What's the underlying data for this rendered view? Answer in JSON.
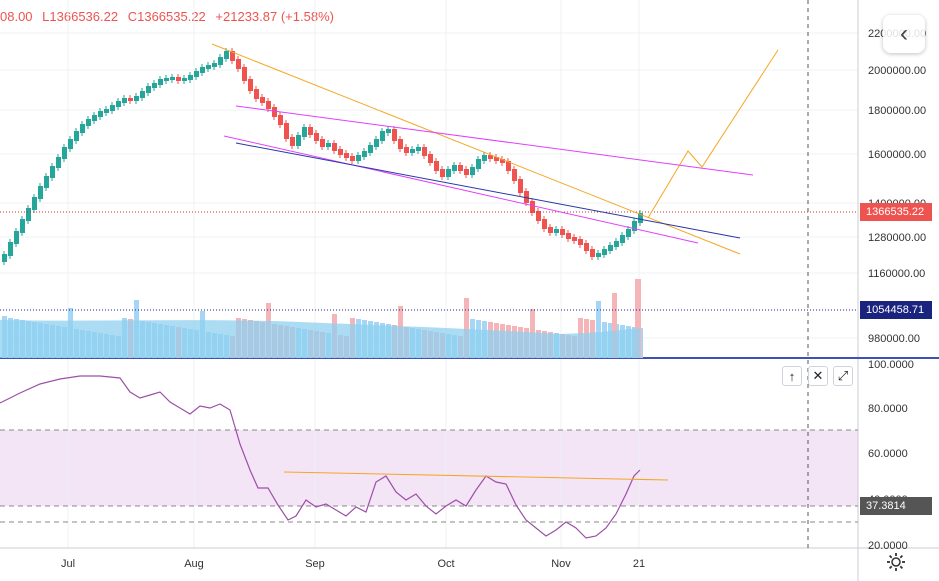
{
  "legend": {
    "open": "08.00",
    "low": "L1366536.22",
    "close": "C1366535.22",
    "change": "+21233.87 (+1.58%)"
  },
  "price_axis": [
    "2200000.00",
    "2000000.00",
    "1800000.00",
    "1600000.00",
    "1400000.00",
    "1280000.00",
    "1160000.00",
    "980000.00"
  ],
  "price_tag": "1366535.22",
  "volume_tag": "1054458.71",
  "indicator_axis": [
    "100.0000",
    "80.0000",
    "60.0000",
    "40.0000",
    "20.0000"
  ],
  "indicator_tag": "37.3814",
  "time_axis": [
    "Jul",
    "Aug",
    "Sep",
    "Oct",
    "Nov",
    "21"
  ],
  "pane_controls": {
    "up": "↑",
    "close": "✕",
    "maximize": "⤢"
  },
  "back_button": "‹",
  "colors": {
    "up": "#26a69a",
    "down": "#ef5350",
    "volume_up": "#a5d6f5",
    "volume_down": "#f5b5b8",
    "rsi": "#9c4fa8",
    "trend_orange": "#f5a623",
    "trend_pink": "#e040fb",
    "trend_blue": "#2836a8"
  }
}
